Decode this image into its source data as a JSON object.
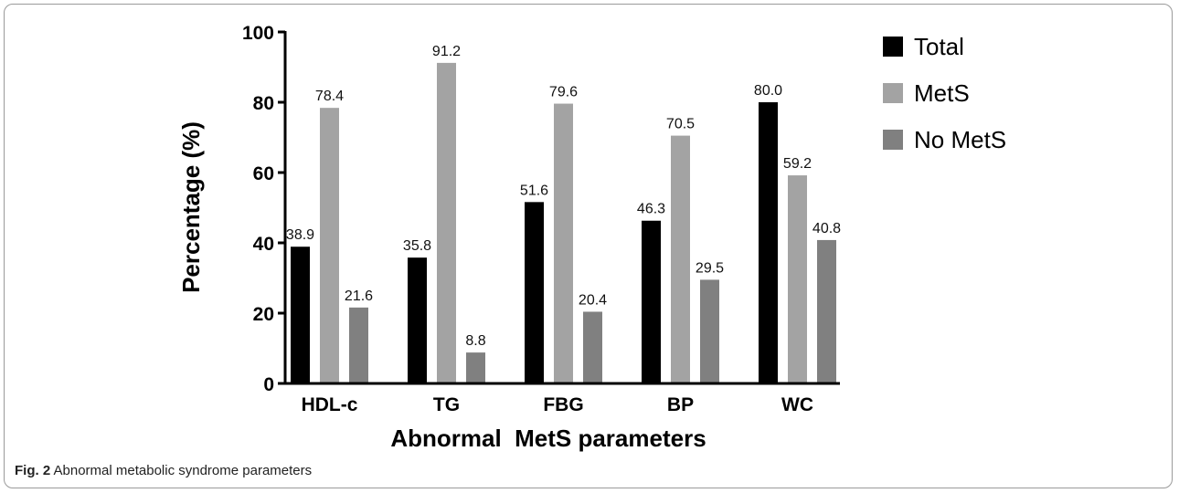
{
  "figure": {
    "caption_label": "Fig. 2",
    "caption_text": "Abnormal metabolic syndrome parameters"
  },
  "chart_data": {
    "type": "bar",
    "categories": [
      "HDL-c",
      "TG",
      "FBG",
      "BP",
      "WC"
    ],
    "series": [
      {
        "name": "Total",
        "color": "#000000",
        "values": [
          38.9,
          35.8,
          51.6,
          46.3,
          80.0
        ],
        "labels": [
          "38.9",
          "35.8",
          "51.6",
          "46.3",
          "80.0"
        ]
      },
      {
        "name": "MetS",
        "color": "#a3a3a3",
        "values": [
          78.4,
          91.2,
          79.6,
          70.5,
          59.2
        ],
        "labels": [
          "78.4",
          "91.2",
          "79.6",
          "70.5",
          "59.2"
        ]
      },
      {
        "name": "No MetS",
        "color": "#808080",
        "values": [
          21.6,
          8.8,
          20.4,
          29.5,
          40.8
        ],
        "labels": [
          "21.6",
          "8.8",
          "20.4",
          "29.5",
          "40.8"
        ]
      }
    ],
    "xlabel": "Abnormal  MetS parameters",
    "ylabel": "Percentage (%)",
    "ylim": [
      0,
      100
    ],
    "yticks": [
      0,
      20,
      40,
      60,
      80,
      100
    ],
    "grid": false,
    "legend": "right"
  }
}
